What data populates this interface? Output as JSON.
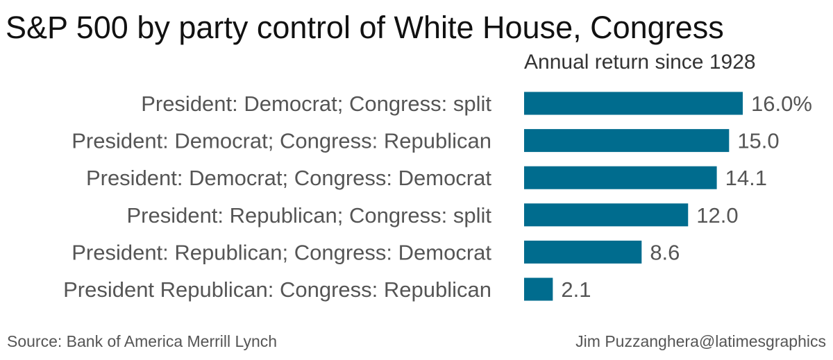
{
  "chart_data": {
    "type": "bar",
    "orientation": "horizontal",
    "title": "S&P 500 by party control of White House, Congress",
    "subtitle": "Annual return since 1928",
    "categories": [
      "President: Democrat; Congress: split",
      "President: Democrat; Congress: Republican",
      "President: Democrat; Congress: Democrat",
      "President: Republican; Congress: split",
      "President: Republican; Congress: Democrat",
      "President Republican: Congress: Republican"
    ],
    "values": [
      16.0,
      15.0,
      14.1,
      12.0,
      8.6,
      2.1
    ],
    "value_labels": [
      "16.0%",
      "15.0",
      "14.1",
      "12.0",
      "8.6",
      "2.1"
    ],
    "unit": "%",
    "xlim": [
      0,
      16.0
    ],
    "grid": false,
    "bar_color": "#006c8e"
  },
  "footer": {
    "source": "Source: Bank of America Merrill Lynch",
    "credit": "Jim Puzzanghera@latimesgraphics"
  }
}
